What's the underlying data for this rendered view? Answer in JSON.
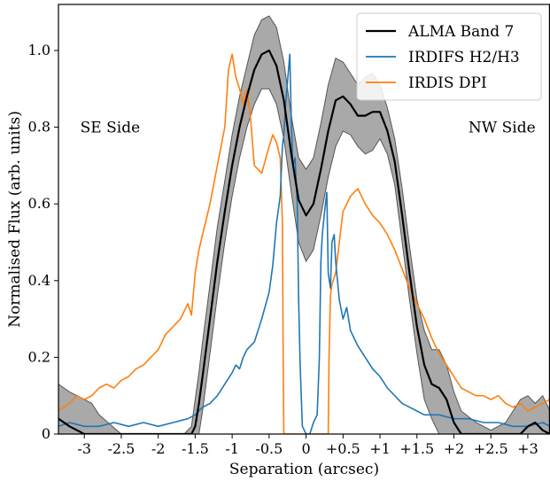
{
  "chart_data": {
    "type": "line",
    "xlabel": "Separation (arcsec)",
    "ylabel": "Normalised Flux (arb. units)",
    "xlim": [
      -3.35,
      3.3
    ],
    "ylim": [
      0,
      1.12
    ],
    "x_ticks": [
      {
        "v": -3,
        "label": "-3"
      },
      {
        "v": -2.5,
        "label": "-2.5"
      },
      {
        "v": -2,
        "label": "-2"
      },
      {
        "v": -1.5,
        "label": "-1.5"
      },
      {
        "v": -1,
        "label": "-1"
      },
      {
        "v": -0.5,
        "label": "-0.5"
      },
      {
        "v": 0,
        "label": "0"
      },
      {
        "v": 0.5,
        "label": "+0.5"
      },
      {
        "v": 1,
        "label": "+1"
      },
      {
        "v": 1.5,
        "label": "+1.5"
      },
      {
        "v": 2,
        "label": "+2"
      },
      {
        "v": 2.5,
        "label": "+2.5"
      },
      {
        "v": 3,
        "label": "+3"
      }
    ],
    "y_ticks": [
      {
        "v": 0,
        "label": "0"
      },
      {
        "v": 0.2,
        "label": "0.2"
      },
      {
        "v": 0.4,
        "label": "0.4"
      },
      {
        "v": 0.6,
        "label": "0.6"
      },
      {
        "v": 0.8,
        "label": "0.8"
      },
      {
        "v": 1.0,
        "label": "1.0"
      }
    ],
    "grid": false,
    "legend_position": "top-right",
    "annotations": [
      {
        "text": "SE Side",
        "x": -2.65,
        "y": 0.8
      },
      {
        "text": "NW Side",
        "x": 2.65,
        "y": 0.8
      }
    ],
    "series": [
      {
        "name": "ALMA Band 7",
        "color": "#000000",
        "x": [
          -3.35,
          -3.2,
          -3.1,
          -3.0,
          -2.9,
          -2.8,
          -2.5,
          -2.2,
          -2.0,
          -1.8,
          -1.65,
          -1.55,
          -1.5,
          -1.45,
          -1.4,
          -1.3,
          -1.2,
          -1.1,
          -1.0,
          -0.9,
          -0.8,
          -0.7,
          -0.6,
          -0.5,
          -0.4,
          -0.3,
          -0.2,
          -0.1,
          0.0,
          0.1,
          0.2,
          0.3,
          0.4,
          0.5,
          0.6,
          0.7,
          0.8,
          0.9,
          1.0,
          1.1,
          1.2,
          1.3,
          1.4,
          1.5,
          1.6,
          1.7,
          1.8,
          1.9,
          2.0,
          2.1,
          2.3,
          2.5,
          2.7,
          2.9,
          3.0,
          3.1,
          3.2,
          3.3
        ],
        "y": [
          0.04,
          0.02,
          0.01,
          0.0,
          0.0,
          0.0,
          0.0,
          0.0,
          0.0,
          0.0,
          0.0,
          0.0,
          0.02,
          0.08,
          0.15,
          0.3,
          0.45,
          0.58,
          0.7,
          0.8,
          0.88,
          0.95,
          0.99,
          1.0,
          0.96,
          0.87,
          0.73,
          0.61,
          0.57,
          0.6,
          0.69,
          0.79,
          0.87,
          0.88,
          0.86,
          0.83,
          0.83,
          0.84,
          0.84,
          0.79,
          0.71,
          0.57,
          0.42,
          0.28,
          0.18,
          0.13,
          0.12,
          0.09,
          0.03,
          0.0,
          0.0,
          0.0,
          0.0,
          0.0,
          0.02,
          0.03,
          0.01,
          0.0
        ],
        "y_lower": [
          0.0,
          0.0,
          0.0,
          0.0,
          0.0,
          0.0,
          0.0,
          0.0,
          0.0,
          0.0,
          0.0,
          0.0,
          0.0,
          0.0,
          0.06,
          0.21,
          0.36,
          0.5,
          0.62,
          0.72,
          0.8,
          0.86,
          0.9,
          0.9,
          0.86,
          0.77,
          0.63,
          0.5,
          0.45,
          0.48,
          0.57,
          0.67,
          0.75,
          0.79,
          0.78,
          0.75,
          0.73,
          0.74,
          0.77,
          0.73,
          0.65,
          0.5,
          0.35,
          0.21,
          0.09,
          0.04,
          0.0,
          0.0,
          0.0,
          0.0,
          0.0,
          0.0,
          0.0,
          0.0,
          0.0,
          0.0,
          0.0,
          0.0
        ],
        "y_upper": [
          0.13,
          0.11,
          0.1,
          0.09,
          0.08,
          0.05,
          0.0,
          0.0,
          0.0,
          0.0,
          0.0,
          0.02,
          0.09,
          0.16,
          0.24,
          0.39,
          0.54,
          0.66,
          0.78,
          0.88,
          0.96,
          1.04,
          1.08,
          1.09,
          1.06,
          0.97,
          0.83,
          0.72,
          0.69,
          0.72,
          0.81,
          0.91,
          0.98,
          0.97,
          0.94,
          0.91,
          0.93,
          0.94,
          0.91,
          0.85,
          0.77,
          0.64,
          0.49,
          0.35,
          0.27,
          0.22,
          0.22,
          0.18,
          0.11,
          0.06,
          0.03,
          0.01,
          0.03,
          0.09,
          0.1,
          0.08,
          0.1,
          0.06
        ]
      },
      {
        "name": "IRDIFS H2/H3",
        "color": "#1f77b4",
        "x": [
          -3.35,
          -3.2,
          -3.0,
          -2.8,
          -2.6,
          -2.4,
          -2.2,
          -2.0,
          -1.8,
          -1.6,
          -1.5,
          -1.4,
          -1.3,
          -1.2,
          -1.1,
          -1.0,
          -0.95,
          -0.9,
          -0.85,
          -0.8,
          -0.7,
          -0.6,
          -0.5,
          -0.45,
          -0.4,
          -0.35,
          -0.32,
          -0.3,
          -0.28,
          -0.25,
          -0.22,
          -0.2,
          -0.18,
          -0.15,
          -0.12,
          -0.1,
          -0.08,
          -0.05,
          0.0,
          0.05,
          0.1,
          0.15,
          0.18,
          0.2,
          0.22,
          0.25,
          0.28,
          0.3,
          0.33,
          0.35,
          0.38,
          0.4,
          0.45,
          0.5,
          0.55,
          0.6,
          0.7,
          0.8,
          0.9,
          1.0,
          1.1,
          1.2,
          1.3,
          1.4,
          1.5,
          1.6,
          1.8,
          2.0,
          2.2,
          2.4,
          2.6,
          2.8,
          3.0,
          3.2,
          3.3
        ],
        "y": [
          0.02,
          0.03,
          0.02,
          0.02,
          0.03,
          0.02,
          0.03,
          0.02,
          0.03,
          0.04,
          0.05,
          0.07,
          0.08,
          0.1,
          0.13,
          0.16,
          0.18,
          0.17,
          0.2,
          0.22,
          0.24,
          0.3,
          0.37,
          0.44,
          0.55,
          0.62,
          0.75,
          0.78,
          0.85,
          0.92,
          0.99,
          0.82,
          0.7,
          0.72,
          0.6,
          0.35,
          0.18,
          0.02,
          0.0,
          0.0,
          0.03,
          0.05,
          0.2,
          0.45,
          0.52,
          0.58,
          0.63,
          0.42,
          0.38,
          0.5,
          0.52,
          0.45,
          0.35,
          0.3,
          0.33,
          0.27,
          0.23,
          0.2,
          0.17,
          0.15,
          0.12,
          0.1,
          0.08,
          0.07,
          0.06,
          0.05,
          0.05,
          0.04,
          0.04,
          0.03,
          0.03,
          0.02,
          0.02,
          0.03,
          0.02
        ]
      },
      {
        "name": "IRDIS DPI",
        "color": "#ff7f0e",
        "x": [
          -3.35,
          -3.2,
          -3.1,
          -3.0,
          -2.9,
          -2.8,
          -2.7,
          -2.6,
          -2.5,
          -2.4,
          -2.3,
          -2.2,
          -2.1,
          -2.0,
          -1.9,
          -1.8,
          -1.7,
          -1.6,
          -1.55,
          -1.5,
          -1.45,
          -1.4,
          -1.3,
          -1.2,
          -1.1,
          -1.05,
          -1.0,
          -0.95,
          -0.9,
          -0.85,
          -0.8,
          -0.75,
          -0.7,
          -0.6,
          -0.5,
          -0.45,
          -0.4,
          -0.35,
          -0.32,
          -0.31,
          -0.3,
          0.3,
          0.31,
          0.33,
          0.35,
          0.4,
          0.45,
          0.5,
          0.55,
          0.6,
          0.7,
          0.8,
          0.9,
          1.0,
          1.1,
          1.2,
          1.3,
          1.4,
          1.5,
          1.6,
          1.7,
          1.8,
          1.9,
          2.0,
          2.1,
          2.2,
          2.3,
          2.4,
          2.5,
          2.6,
          2.7,
          2.8,
          2.9,
          3.0,
          3.1,
          3.2,
          3.3
        ],
        "y": [
          0.06,
          0.08,
          0.1,
          0.09,
          0.1,
          0.12,
          0.13,
          0.12,
          0.14,
          0.15,
          0.17,
          0.18,
          0.2,
          0.22,
          0.26,
          0.28,
          0.3,
          0.34,
          0.31,
          0.42,
          0.48,
          0.52,
          0.6,
          0.7,
          0.8,
          0.95,
          0.99,
          0.93,
          0.9,
          0.86,
          0.9,
          0.82,
          0.7,
          0.68,
          0.75,
          0.78,
          0.76,
          0.72,
          0.55,
          0.2,
          0.0,
          0.0,
          0.2,
          0.36,
          0.39,
          0.42,
          0.5,
          0.58,
          0.6,
          0.62,
          0.64,
          0.6,
          0.57,
          0.55,
          0.52,
          0.48,
          0.43,
          0.38,
          0.34,
          0.3,
          0.25,
          0.21,
          0.18,
          0.15,
          0.12,
          0.11,
          0.1,
          0.1,
          0.09,
          0.1,
          0.08,
          0.07,
          0.08,
          0.06,
          0.07,
          0.08,
          0.09
        ]
      }
    ]
  }
}
